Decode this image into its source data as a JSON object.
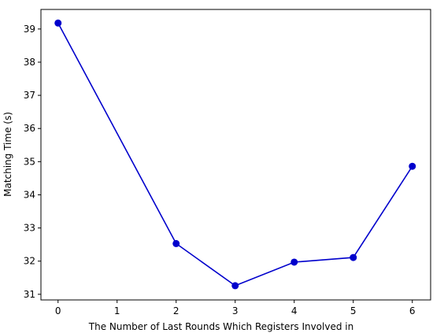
{
  "chart_data": {
    "type": "line",
    "x_label": "The Number of Last Rounds Which Registers Involved in",
    "y_label": "Matching Time (s)",
    "x": [
      0,
      2,
      3,
      4,
      5,
      6
    ],
    "series": [
      {
        "color": "#0000cc",
        "values": [
          39.18,
          32.53,
          31.26,
          31.97,
          32.11,
          34.86
        ]
      }
    ],
    "xlim": [
      -0.29,
      6.31
    ],
    "xticks": [
      0,
      1,
      2,
      3,
      4,
      5,
      6
    ],
    "ylim": [
      30.83,
      39.59
    ],
    "yticks": [
      31,
      32,
      33,
      34,
      35,
      36,
      37,
      38,
      39
    ]
  }
}
